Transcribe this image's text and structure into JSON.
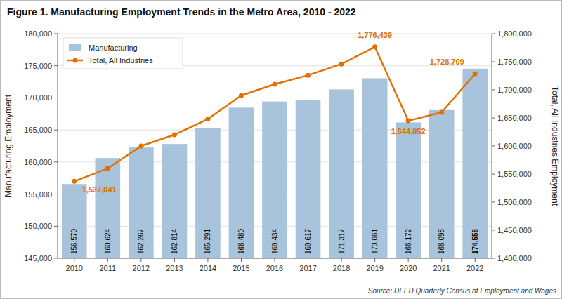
{
  "chart_data": {
    "type": "bar",
    "title": "Figure 1. Manufacturing Employment Trends in the Metro Area, 2010 - 2022",
    "source": "Source: DEED Quarterly Census of Employment and Wages",
    "categories": [
      "2010",
      "2011",
      "2012",
      "2013",
      "2014",
      "2015",
      "2016",
      "2017",
      "2018",
      "2019",
      "2020",
      "2021",
      "2022"
    ],
    "series": [
      {
        "name": "Manufacturing",
        "type": "bar",
        "color": "#a8c4dc",
        "values": [
          156570,
          160624,
          162267,
          162814,
          165291,
          168480,
          169434,
          169617,
          171317,
          173061,
          166172,
          168098,
          174558
        ],
        "data_labels": true,
        "value_labels": [
          "156,570",
          "160,624",
          "162,267",
          "162,814",
          "165,291",
          "168,480",
          "169,434",
          "169,617",
          "171,317",
          "173,061",
          "166,172",
          "168,098",
          "174,558"
        ]
      },
      {
        "name": "Total, All Industries",
        "type": "line",
        "color": "#e07000",
        "axis": "y2",
        "marker": "circle",
        "values": [
          1537041,
          1560000,
          1600000,
          1620000,
          1648000,
          1690000,
          1710000,
          1726000,
          1746000,
          1776439,
          1644852,
          1660000,
          1728709
        ]
      }
    ],
    "ylabel": "Manufacturing Employment",
    "y2label": "Total, All Industries Employment",
    "ylim": [
      145000,
      180000
    ],
    "yticks": [
      {
        "value": 145000,
        "label": "145,000"
      },
      {
        "value": 150000,
        "label": "150,000"
      },
      {
        "value": 155000,
        "label": "155,000"
      },
      {
        "value": 160000,
        "label": "160,000"
      },
      {
        "value": 165000,
        "label": "165,000"
      },
      {
        "value": 170000,
        "label": "170,000"
      },
      {
        "value": 175000,
        "label": "175,000"
      },
      {
        "value": 180000,
        "label": "180,000"
      }
    ],
    "y2lim": [
      1400000,
      1800000
    ],
    "y2ticks": [
      {
        "value": 1400000,
        "label": "1,400,000"
      },
      {
        "value": 1450000,
        "label": "1,450,000"
      },
      {
        "value": 1500000,
        "label": "1,500,000"
      },
      {
        "value": 1550000,
        "label": "1,550,000"
      },
      {
        "value": 1600000,
        "label": "1,600,000"
      },
      {
        "value": 1650000,
        "label": "1,650,000"
      },
      {
        "value": 1700000,
        "label": "1,700,000"
      },
      {
        "value": 1750000,
        "label": "1,750,000"
      },
      {
        "value": 1800000,
        "label": "1,800,000"
      }
    ],
    "annotations": [
      {
        "category": "2010",
        "value": 1537041,
        "text": "1,537,041"
      },
      {
        "category": "2019",
        "value": 1776439,
        "text": "1,776,439"
      },
      {
        "category": "2020",
        "value": 1644852,
        "text": "1,644,852"
      },
      {
        "category": "2022",
        "value": 1728709,
        "text": "1,728,709"
      }
    ],
    "grid": true,
    "legend": "upper left"
  }
}
